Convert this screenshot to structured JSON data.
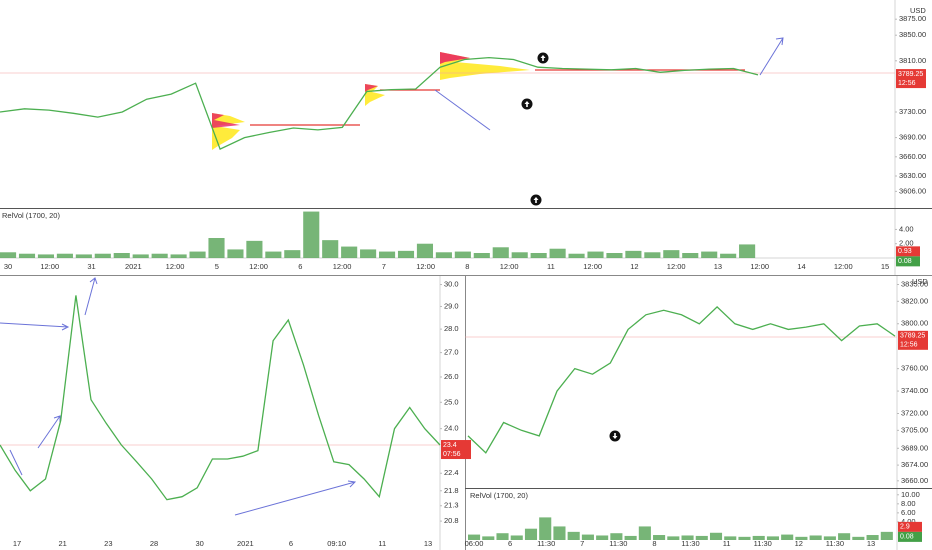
{
  "chart_data": [
    {
      "type": "line",
      "unit": "USD",
      "color": "#4caf50",
      "log_scale": false,
      "grid": false,
      "values": [
        3730,
        3735,
        3733,
        3728,
        3722,
        3730,
        3750,
        3758,
        3775,
        3672,
        3690,
        3698,
        3705,
        3702,
        3706,
        3762,
        3765,
        3766,
        3800,
        3812,
        3815,
        3812,
        3800,
        3798,
        3797,
        3796,
        3798,
        3792,
        3795,
        3797,
        3798,
        3788
      ],
      "ylim": [
        3580,
        3905
      ],
      "yticks": [
        {
          "value": 3875,
          "label": "3875.00"
        },
        {
          "value": 3850,
          "label": "3850.00"
        },
        {
          "value": 3810,
          "label": "3810.00"
        },
        {
          "value": 3730,
          "label": "3730.00"
        },
        {
          "value": 3690,
          "label": "3690.00"
        },
        {
          "value": 3660,
          "label": "3660.00"
        },
        {
          "value": 3630,
          "label": "3630.00"
        },
        {
          "value": 3606,
          "label": "3606.00"
        }
      ],
      "last_price": 3789.25,
      "countdown": "12:56",
      "xlabels": [
        "30",
        "12:00",
        "31",
        "2021",
        "12:00",
        "5",
        "12:00",
        "6",
        "12:00",
        "7",
        "12:00",
        "8",
        "12:00",
        "11",
        "12:00",
        "12",
        "12:00",
        "13",
        "12:00",
        "14",
        "12:00",
        "15"
      ],
      "volume": {
        "title": "RelVol (1700, 20)",
        "color": "#5fa85f",
        "ylim": [
          0,
          7
        ],
        "yticks": [
          {
            "value": 4,
            "label": "4.00"
          },
          {
            "value": 2,
            "label": "2.00"
          }
        ],
        "values": [
          0.8,
          0.6,
          0.5,
          0.6,
          0.5,
          0.6,
          0.7,
          0.5,
          0.6,
          0.5,
          0.9,
          2.8,
          1.2,
          2.4,
          0.9,
          1.1,
          6.5,
          2.5,
          1.6,
          1.2,
          0.9,
          1.0,
          2.0,
          0.8,
          0.9,
          0.7,
          1.5,
          0.8,
          0.7,
          1.3,
          0.6,
          0.9,
          0.7,
          1.0,
          0.8,
          1.1,
          0.7,
          0.9,
          0.6,
          1.9
        ],
        "last_values": [
          0.93,
          0.08
        ]
      }
    },
    {
      "type": "line",
      "color": "#4caf50",
      "log_scale": true,
      "grid": false,
      "values": [
        23.4,
        22.5,
        21.8,
        22.2,
        24.3,
        29.5,
        25.1,
        24.2,
        23.4,
        22.8,
        22.2,
        21.5,
        21.6,
        21.9,
        22.9,
        22.9,
        23.0,
        23.2,
        27.5,
        28.4,
        26.5,
        24.5,
        22.8,
        22.7,
        22.2,
        21.6,
        24.0,
        24.8,
        24.0,
        23.4
      ],
      "ylim": [
        20.2,
        30.4
      ],
      "yticks": [
        {
          "value": 30,
          "label": "30.0"
        },
        {
          "value": 29,
          "label": "29.0"
        },
        {
          "value": 28,
          "label": "28.0"
        },
        {
          "value": 27,
          "label": "27.0"
        },
        {
          "value": 26,
          "label": "26.0"
        },
        {
          "value": 25,
          "label": "25.0"
        },
        {
          "value": 24,
          "label": "24.0"
        },
        22.4,
        21.8,
        21.3,
        20.8
      ],
      "last_price": 23.4,
      "countdown": "07:56",
      "xlabels": [
        "17",
        "21",
        "23",
        "28",
        "30",
        "2021",
        "6",
        "09:10",
        "11",
        "13"
      ]
    },
    {
      "type": "line",
      "unit": "USD",
      "color": "#4caf50",
      "log_scale": false,
      "grid": false,
      "values": [
        3700,
        3685,
        3712,
        3705,
        3700,
        3740,
        3760,
        3755,
        3765,
        3795,
        3808,
        3812,
        3808,
        3800,
        3815,
        3800,
        3795,
        3800,
        3795,
        3797,
        3800,
        3785,
        3798,
        3800,
        3789
      ],
      "ylim": [
        3653.6,
        3839
      ],
      "yticks": [
        {
          "value": 3835,
          "label": "3835.00"
        },
        {
          "value": 3820,
          "label": "3820.00"
        },
        {
          "value": 3800,
          "label": "3800.00"
        },
        {
          "value": 3760,
          "label": "3760.00"
        },
        {
          "value": 3740,
          "label": "3740.00"
        },
        {
          "value": 3720,
          "label": "3720.00"
        },
        {
          "value": 3705,
          "label": "3705.00"
        },
        {
          "value": 3689,
          "label": "3689.00"
        },
        {
          "value": 3674,
          "label": "3674.00"
        },
        {
          "value": 3660,
          "label": "3660.00"
        }
      ],
      "last_price": 3789.25,
      "countdown": "12:56",
      "xlabels": [
        "06:00",
        "6",
        "11:30",
        "7",
        "11:30",
        "8",
        "11:30",
        "11",
        "11:30",
        "12",
        "11:30",
        "13"
      ],
      "volume": {
        "title": "RelVol (1700, 20)",
        "color": "#5fa85f",
        "ylim": [
          0,
          11.5
        ],
        "yticks": [
          {
            "value": 10,
            "label": "10.00"
          },
          {
            "value": 8,
            "label": "8.00"
          },
          {
            "value": 6,
            "label": "6.00"
          },
          {
            "value": 4,
            "label": "4.00"
          }
        ],
        "values": [
          1.2,
          0.8,
          1.5,
          1.0,
          2.5,
          5.0,
          3.0,
          1.8,
          1.2,
          1.0,
          1.5,
          0.9,
          3.0,
          1.1,
          0.8,
          1.0,
          0.9,
          1.6,
          0.8,
          0.7,
          0.9,
          0.8,
          1.2,
          0.7,
          1.0,
          0.8,
          1.5,
          0.7,
          1.1,
          1.8
        ],
        "last_values": [
          2.9,
          0.08
        ]
      }
    }
  ]
}
